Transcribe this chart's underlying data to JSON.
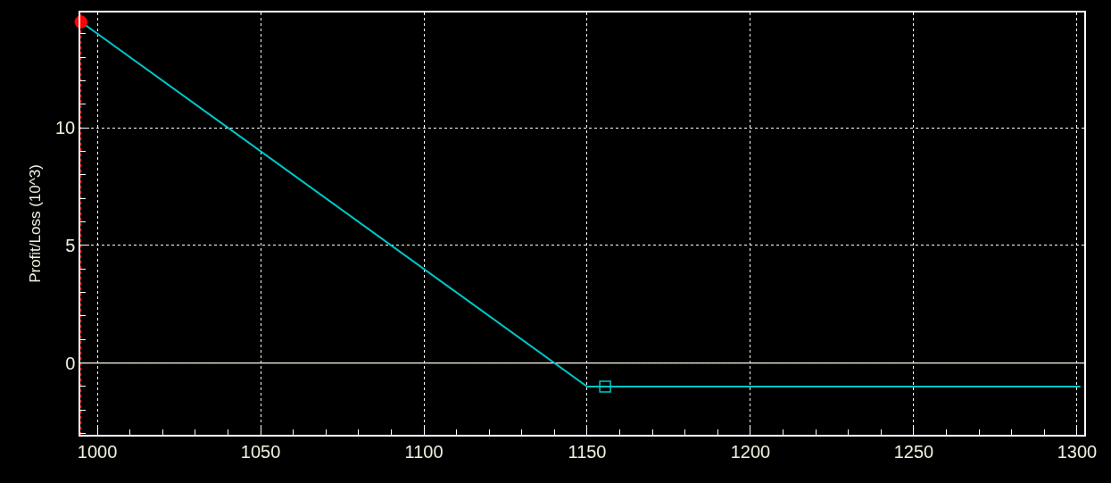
{
  "chart_data": {
    "type": "line",
    "ylabel": "Profit/Loss (10^3)",
    "series": [
      {
        "color": "#00c8c8",
        "x": [
          995,
          1150,
          1301
        ],
        "values": [
          14.5,
          -1,
          -1
        ],
        "marker": "none"
      },
      {
        "type": "scatter",
        "color": "#ff0000",
        "x": [
          995
        ],
        "values": [
          14.5
        ],
        "marker": "circle"
      },
      {
        "type": "scatter",
        "color": "#00c8c8",
        "x": [
          1155.5
        ],
        "values": [
          -1
        ],
        "marker": "square"
      }
    ],
    "xlim": [
      994.8,
      1302.2
    ],
    "xticks": [
      1000,
      1050,
      1100,
      1150,
      1200,
      1250,
      1300
    ],
    "ylim": [
      -3.05,
      14.9
    ],
    "yticks": [
      0,
      5,
      10
    ],
    "ref_lines": [
      {
        "axis": "y",
        "value": 0,
        "color": "#fff8e0",
        "line_style": "solid"
      },
      {
        "axis": "x",
        "value": 995,
        "color": "#ff0000",
        "line_style": "dotted"
      }
    ],
    "grid": true
  }
}
